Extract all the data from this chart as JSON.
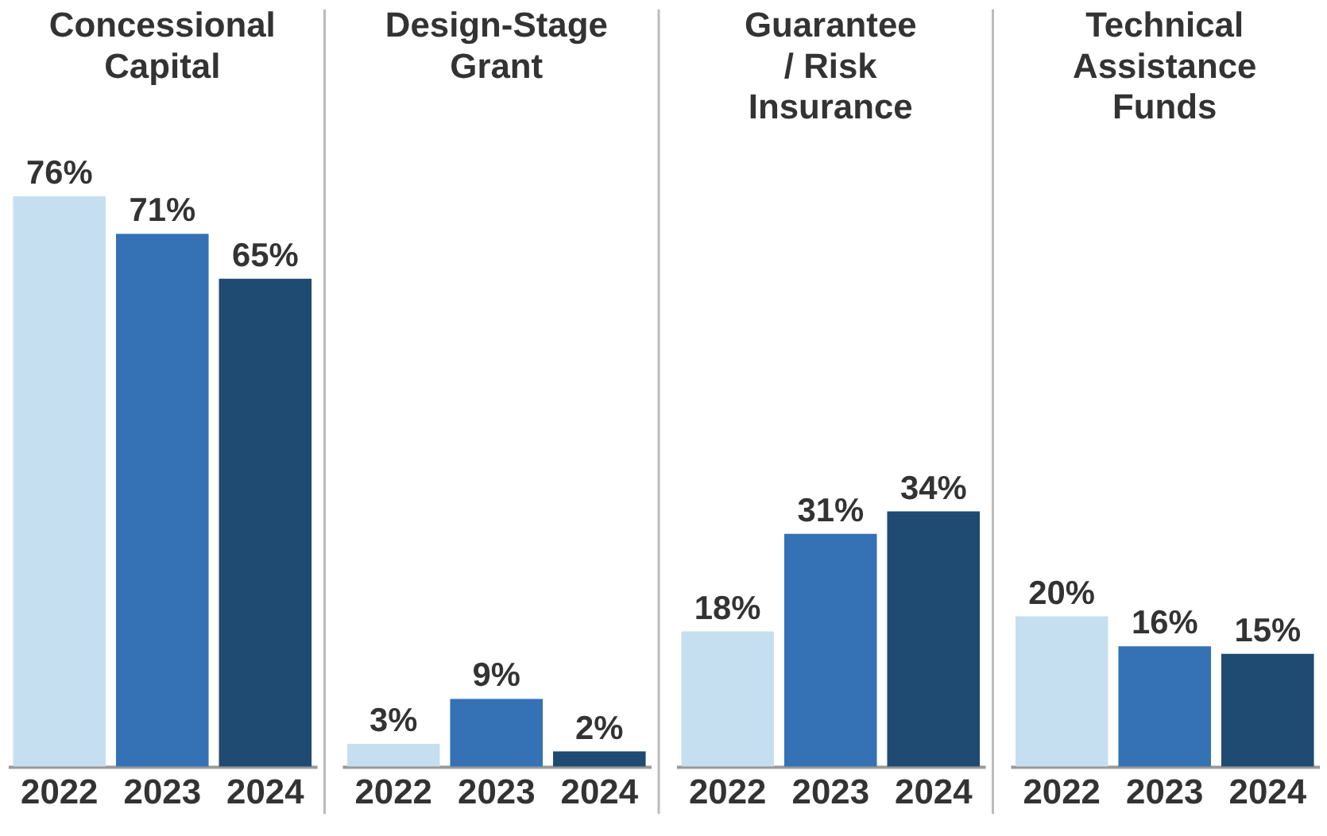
{
  "chart_data": [
    {
      "type": "bar",
      "title": "Concessional Capital",
      "categories": [
        "2022",
        "2023",
        "2024"
      ],
      "values": [
        76,
        71,
        65
      ],
      "value_labels": [
        "76%",
        "71%",
        "65%"
      ],
      "colors": [
        "#c6dff0",
        "#3472b5",
        "#1f4b73"
      ],
      "tick_labels": "x"
    },
    {
      "type": "bar",
      "title": "Design-Stage Grant",
      "categories": [
        "2022",
        "2023",
        "2024"
      ],
      "values": [
        3,
        9,
        2
      ],
      "value_labels": [
        "3%",
        "9%",
        "2%"
      ],
      "colors": [
        "#c6dff0",
        "#3472b5",
        "#1f4b73"
      ],
      "tick_labels": "x"
    },
    {
      "type": "bar",
      "title": "Guarantee / Risk Insurance",
      "categories": [
        "2022",
        "2023",
        "2024"
      ],
      "values": [
        18,
        31,
        34
      ],
      "value_labels": [
        "18%",
        "31%",
        "34%"
      ],
      "colors": [
        "#c6dff0",
        "#3472b5",
        "#1f4b73"
      ],
      "tick_labels": "x"
    },
    {
      "type": "bar",
      "title": "Technical Assistance Funds",
      "categories": [
        "2022",
        "2023",
        "2024"
      ],
      "values": [
        20,
        16,
        15
      ],
      "value_labels": [
        "20%",
        "16%",
        "15%"
      ],
      "colors": [
        "#c6dff0",
        "#3472b5",
        "#1f4b73"
      ],
      "tick_labels": "x"
    }
  ]
}
